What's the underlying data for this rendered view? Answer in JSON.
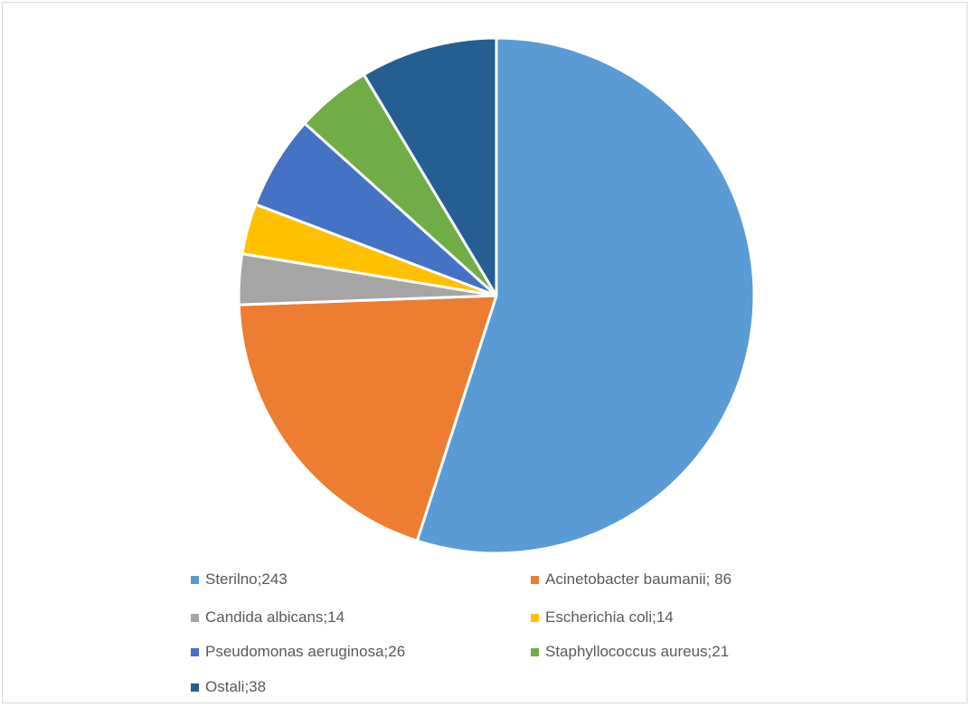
{
  "chart_data": {
    "type": "pie",
    "title": "",
    "legend_position": "bottom",
    "slices": [
      {
        "label": "Sterilno;243",
        "name": "Sterilno",
        "value": 243,
        "color": "#5B9BD5"
      },
      {
        "label": "Acinetobacter baumanii; 86",
        "name": "Acinetobacter baumanii",
        "value": 86,
        "color": "#ED7D31"
      },
      {
        "label": "Candida albicans;14",
        "name": "Candida albicans",
        "value": 14,
        "color": "#A5A5A5"
      },
      {
        "label": "Escherichia coli;14",
        "name": "Escherichia coli",
        "value": 14,
        "color": "#FFC000"
      },
      {
        "label": "Pseudomonas aeruginosa;26",
        "name": "Pseudomonas aeruginosa",
        "value": 26,
        "color": "#4472C4"
      },
      {
        "label": "Staphyllococcus aureus;21",
        "name": "Staphyllococcus aureus",
        "value": 21,
        "color": "#70AD47"
      },
      {
        "label": "Ostali;38",
        "name": "Ostali",
        "value": 38,
        "color": "#255E91"
      }
    ]
  }
}
